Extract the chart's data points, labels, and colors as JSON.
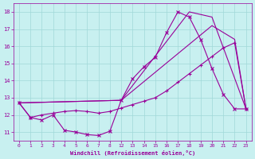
{
  "xlabel": "Windchill (Refroidissement éolien,°C)",
  "background_color": "#c8f0f0",
  "line_color": "#990099",
  "grid_color": "#a0d8d8",
  "xtick_labels": [
    "0",
    "1",
    "2",
    "3",
    "4",
    "5",
    "6",
    "7",
    "8",
    "12",
    "13",
    "14",
    "15",
    "16",
    "17",
    "18",
    "19",
    "20",
    "21",
    "22",
    "23"
  ],
  "xtick_pos": [
    0,
    1,
    2,
    3,
    4,
    5,
    6,
    7,
    8,
    9,
    10,
    11,
    12,
    13,
    14,
    15,
    16,
    17,
    18,
    19,
    20
  ],
  "yticks": [
    11,
    12,
    13,
    14,
    15,
    16,
    17,
    18
  ],
  "line1_x": [
    0,
    1,
    2,
    3,
    4,
    5,
    6,
    7,
    8,
    9,
    10,
    11,
    12,
    13,
    14,
    15,
    16,
    17,
    18,
    19,
    20
  ],
  "line1_y": [
    12.7,
    11.85,
    11.7,
    12.0,
    11.1,
    11.0,
    10.85,
    10.8,
    11.05,
    12.85,
    14.1,
    14.8,
    15.35,
    16.8,
    18.0,
    17.7,
    16.4,
    14.7,
    13.2,
    12.35,
    12.35
  ],
  "line2_x": [
    0,
    9,
    15,
    17,
    20
  ],
  "line2_y": [
    12.7,
    12.85,
    18.0,
    17.7,
    12.35
  ],
  "line3_x": [
    0,
    9,
    17,
    19,
    20
  ],
  "line3_y": [
    12.7,
    12.85,
    17.2,
    16.4,
    12.35
  ],
  "line4_x": [
    0,
    1,
    2,
    3,
    4,
    5,
    6,
    7,
    8,
    9,
    10,
    11,
    12,
    13,
    14,
    15,
    16,
    17,
    18,
    19,
    20
  ],
  "line4_y": [
    12.7,
    11.85,
    12.0,
    12.1,
    12.2,
    12.25,
    12.2,
    12.1,
    12.2,
    12.4,
    12.6,
    12.8,
    13.0,
    13.4,
    13.9,
    14.4,
    14.9,
    15.4,
    15.9,
    16.2,
    12.35
  ],
  "xlim": [
    -0.5,
    20.5
  ],
  "ylim": [
    10.5,
    18.5
  ],
  "figsize": [
    3.2,
    2.0
  ],
  "dpi": 100
}
